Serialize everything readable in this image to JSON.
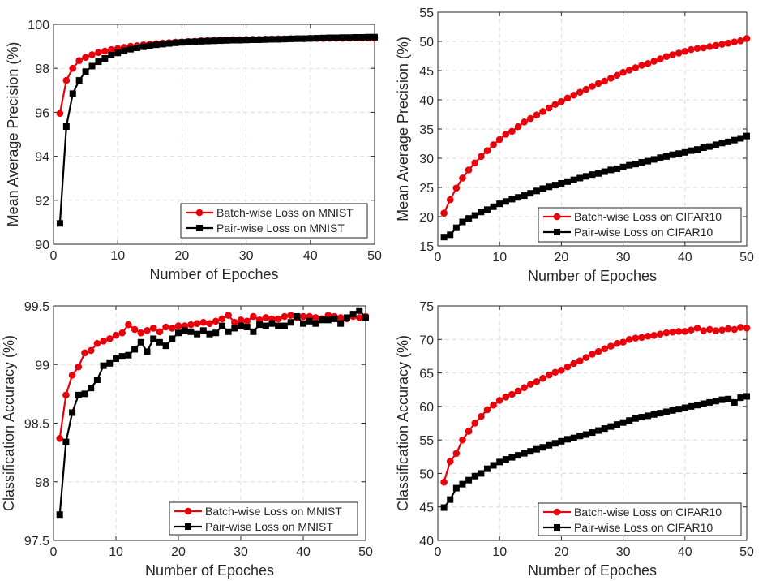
{
  "chart_data": [
    {
      "type": "line",
      "xlabel": "Number of Epoches",
      "ylabel": "Mean Average Precision (%)",
      "xlim": [
        0,
        50
      ],
      "ylim": [
        90,
        100
      ],
      "xticks": [
        "0",
        "10",
        "20",
        "30",
        "40",
        "50"
      ],
      "yticks": [
        "90",
        "92",
        "94",
        "96",
        "98",
        "100"
      ],
      "grid": true,
      "legend_position": "bottom-right",
      "series": [
        {
          "name": "Batch-wise Loss on MNIST",
          "color": "#e8000b",
          "marker": "circle",
          "x": [
            1,
            2,
            3,
            4,
            5,
            6,
            7,
            8,
            9,
            10,
            11,
            12,
            13,
            14,
            15,
            16,
            17,
            18,
            19,
            20,
            21,
            22,
            23,
            24,
            25,
            26,
            27,
            28,
            29,
            30,
            31,
            32,
            33,
            34,
            35,
            36,
            37,
            38,
            39,
            40,
            41,
            42,
            43,
            44,
            45,
            46,
            47,
            48,
            49,
            50
          ],
          "y": [
            95.95,
            97.45,
            98.0,
            98.35,
            98.5,
            98.62,
            98.72,
            98.78,
            98.85,
            98.9,
            98.95,
            99.0,
            99.03,
            99.07,
            99.1,
            99.12,
            99.15,
            99.17,
            99.19,
            99.2,
            99.22,
            99.23,
            99.25,
            99.26,
            99.27,
            99.28,
            99.29,
            99.3,
            99.3,
            99.31,
            99.32,
            99.32,
            99.33,
            99.33,
            99.34,
            99.34,
            99.35,
            99.35,
            99.35,
            99.36,
            99.36,
            99.36,
            99.37,
            99.37,
            99.37,
            99.38,
            99.38,
            99.38,
            99.38,
            99.38
          ]
        },
        {
          "name": "Pair-wise Loss on MNIST",
          "color": "#000000",
          "marker": "square",
          "x": [
            1,
            2,
            3,
            4,
            5,
            6,
            7,
            8,
            9,
            10,
            11,
            12,
            13,
            14,
            15,
            16,
            17,
            18,
            19,
            20,
            21,
            22,
            23,
            24,
            25,
            26,
            27,
            28,
            29,
            30,
            31,
            32,
            33,
            34,
            35,
            36,
            37,
            38,
            39,
            40,
            41,
            42,
            43,
            44,
            45,
            46,
            47,
            48,
            49,
            50
          ],
          "y": [
            90.95,
            95.35,
            96.85,
            97.45,
            97.85,
            98.1,
            98.3,
            98.45,
            98.6,
            98.7,
            98.8,
            98.87,
            98.93,
            98.98,
            99.03,
            99.07,
            99.1,
            99.13,
            99.16,
            99.18,
            99.2,
            99.21,
            99.23,
            99.24,
            99.25,
            99.26,
            99.27,
            99.28,
            99.28,
            99.29,
            99.3,
            99.3,
            99.31,
            99.32,
            99.32,
            99.33,
            99.34,
            99.35,
            99.35,
            99.36,
            99.37,
            99.38,
            99.39,
            99.39,
            99.4,
            99.4,
            99.41,
            99.41,
            99.42,
            99.42
          ]
        }
      ]
    },
    {
      "type": "line",
      "xlabel": "Number of Epoches",
      "ylabel": "Mean Average Precision (%)",
      "xlim": [
        0,
        50
      ],
      "ylim": [
        15,
        55
      ],
      "xticks": [
        "0",
        "10",
        "20",
        "30",
        "40",
        "50"
      ],
      "yticks": [
        "15",
        "20",
        "25",
        "30",
        "35",
        "40",
        "45",
        "50",
        "55"
      ],
      "grid": true,
      "legend_position": "bottom-right",
      "series": [
        {
          "name": "Batch-wise Loss on CIFAR10",
          "color": "#e8000b",
          "marker": "circle",
          "x": [
            1,
            2,
            3,
            4,
            5,
            6,
            7,
            8,
            9,
            10,
            11,
            12,
            13,
            14,
            15,
            16,
            17,
            18,
            19,
            20,
            21,
            22,
            23,
            24,
            25,
            26,
            27,
            28,
            29,
            30,
            31,
            32,
            33,
            34,
            35,
            36,
            37,
            38,
            39,
            40,
            41,
            42,
            43,
            44,
            45,
            46,
            47,
            48,
            49,
            50
          ],
          "y": [
            20.6,
            22.9,
            24.9,
            26.6,
            28.0,
            29.2,
            30.3,
            31.3,
            32.3,
            33.2,
            34.1,
            34.6,
            35.4,
            36.2,
            36.8,
            37.4,
            38.0,
            38.6,
            39.2,
            39.7,
            40.3,
            40.8,
            41.3,
            41.8,
            42.3,
            42.8,
            43.2,
            43.7,
            44.2,
            44.7,
            45.1,
            45.5,
            45.9,
            46.2,
            46.6,
            47.0,
            47.4,
            47.7,
            48.0,
            48.3,
            48.6,
            48.8,
            48.9,
            49.1,
            49.3,
            49.5,
            49.7,
            49.9,
            50.1,
            50.5
          ]
        },
        {
          "name": "Pair-wise Loss on CIFAR10",
          "color": "#000000",
          "marker": "square",
          "x": [
            1,
            2,
            3,
            4,
            5,
            6,
            7,
            8,
            9,
            10,
            11,
            12,
            13,
            14,
            15,
            16,
            17,
            18,
            19,
            20,
            21,
            22,
            23,
            24,
            25,
            26,
            27,
            28,
            29,
            30,
            31,
            32,
            33,
            34,
            35,
            36,
            37,
            38,
            39,
            40,
            41,
            42,
            43,
            44,
            45,
            46,
            47,
            48,
            49,
            50
          ],
          "y": [
            16.5,
            16.9,
            18.1,
            19.1,
            19.7,
            20.2,
            20.8,
            21.2,
            21.7,
            22.2,
            22.6,
            23.0,
            23.3,
            23.6,
            24.0,
            24.4,
            24.8,
            25.1,
            25.4,
            25.7,
            26.0,
            26.3,
            26.6,
            26.9,
            27.2,
            27.4,
            27.7,
            28.0,
            28.2,
            28.5,
            28.8,
            29.0,
            29.3,
            29.5,
            29.8,
            30.1,
            30.3,
            30.6,
            30.8,
            31.0,
            31.3,
            31.5,
            31.8,
            32.0,
            32.3,
            32.6,
            32.8,
            33.1,
            33.4,
            33.8
          ]
        }
      ]
    },
    {
      "type": "line",
      "xlabel": "Number of Epoches",
      "ylabel": "Classification Accuracy (%)",
      "xlim": [
        0,
        50
      ],
      "ylim": [
        97.5,
        99.5
      ],
      "xticks": [
        "0",
        "10",
        "20",
        "30",
        "40",
        "50"
      ],
      "yticks": [
        "97.5",
        "98",
        "98.5",
        "99",
        "99.5"
      ],
      "grid": true,
      "legend_position": "bottom-right",
      "series": [
        {
          "name": "Batch-wise Loss on MNIST",
          "color": "#e8000b",
          "marker": "circle",
          "x": [
            1,
            2,
            3,
            4,
            5,
            6,
            7,
            8,
            9,
            10,
            11,
            12,
            13,
            14,
            15,
            16,
            17,
            18,
            19,
            20,
            21,
            22,
            23,
            24,
            25,
            26,
            27,
            28,
            29,
            30,
            31,
            32,
            33,
            34,
            35,
            36,
            37,
            38,
            39,
            40,
            41,
            42,
            43,
            44,
            45,
            46,
            47,
            48,
            49,
            50
          ],
          "y": [
            98.37,
            98.74,
            98.91,
            98.98,
            99.1,
            99.12,
            99.18,
            99.2,
            99.22,
            99.25,
            99.27,
            99.34,
            99.3,
            99.27,
            99.29,
            99.31,
            99.28,
            99.32,
            99.31,
            99.33,
            99.33,
            99.34,
            99.35,
            99.36,
            99.35,
            99.37,
            99.39,
            99.42,
            99.36,
            99.38,
            99.37,
            99.41,
            99.38,
            99.4,
            99.39,
            99.39,
            99.41,
            99.42,
            99.4,
            99.41,
            99.41,
            99.4,
            99.39,
            99.42,
            99.41,
            99.4,
            99.39,
            99.41,
            99.4,
            99.41
          ]
        },
        {
          "name": "Pair-wise Loss on MNIST",
          "color": "#000000",
          "marker": "square",
          "x": [
            1,
            2,
            3,
            4,
            5,
            6,
            7,
            8,
            9,
            10,
            11,
            12,
            13,
            14,
            15,
            16,
            17,
            18,
            19,
            20,
            21,
            22,
            23,
            24,
            25,
            26,
            27,
            28,
            29,
            30,
            31,
            32,
            33,
            34,
            35,
            36,
            37,
            38,
            39,
            40,
            41,
            42,
            43,
            44,
            45,
            46,
            47,
            48,
            49,
            50
          ],
          "y": [
            97.72,
            98.34,
            98.59,
            98.74,
            98.75,
            98.8,
            98.87,
            98.99,
            99.01,
            99.05,
            99.07,
            99.08,
            99.13,
            99.19,
            99.11,
            99.22,
            99.19,
            99.16,
            99.22,
            99.27,
            99.29,
            99.28,
            99.26,
            99.29,
            99.26,
            99.27,
            99.33,
            99.28,
            99.31,
            99.33,
            99.32,
            99.28,
            99.34,
            99.33,
            99.35,
            99.33,
            99.33,
            99.36,
            99.41,
            99.35,
            99.37,
            99.35,
            99.38,
            99.38,
            99.39,
            99.35,
            99.4,
            99.43,
            99.46,
            99.4
          ]
        }
      ]
    },
    {
      "type": "line",
      "xlabel": "Number of Epoches",
      "ylabel": "Classification Accuracy (%)",
      "xlim": [
        0,
        50
      ],
      "ylim": [
        40,
        75
      ],
      "xticks": [
        "0",
        "10",
        "20",
        "30",
        "40",
        "50"
      ],
      "yticks": [
        "40",
        "45",
        "50",
        "55",
        "60",
        "65",
        "70",
        "75"
      ],
      "grid": true,
      "legend_position": "bottom-right",
      "series": [
        {
          "name": "Batch-wise Loss on CIFAR10",
          "color": "#e8000b",
          "marker": "circle",
          "x": [
            1,
            2,
            3,
            4,
            5,
            6,
            7,
            8,
            9,
            10,
            11,
            12,
            13,
            14,
            15,
            16,
            17,
            18,
            19,
            20,
            21,
            22,
            23,
            24,
            25,
            26,
            27,
            28,
            29,
            30,
            31,
            32,
            33,
            34,
            35,
            36,
            37,
            38,
            39,
            40,
            41,
            42,
            43,
            44,
            45,
            46,
            47,
            48,
            49,
            50
          ],
          "y": [
            48.7,
            51.8,
            53.0,
            55.0,
            56.3,
            57.5,
            58.5,
            59.5,
            60.2,
            60.9,
            61.4,
            61.8,
            62.3,
            62.8,
            63.3,
            63.7,
            64.2,
            64.7,
            65.1,
            65.4,
            65.9,
            66.4,
            66.8,
            67.3,
            67.8,
            68.2,
            68.6,
            69.0,
            69.4,
            69.6,
            70.0,
            70.2,
            70.3,
            70.5,
            70.6,
            70.8,
            71.0,
            71.1,
            71.2,
            71.2,
            71.4,
            71.7,
            71.3,
            71.5,
            71.3,
            71.4,
            71.6,
            71.5,
            71.8,
            71.7
          ]
        },
        {
          "name": "Pair-wise Loss on CIFAR10",
          "color": "#000000",
          "marker": "square",
          "x": [
            1,
            2,
            3,
            4,
            5,
            6,
            7,
            8,
            9,
            10,
            11,
            12,
            13,
            14,
            15,
            16,
            17,
            18,
            19,
            20,
            21,
            22,
            23,
            24,
            25,
            26,
            27,
            28,
            29,
            30,
            31,
            32,
            33,
            34,
            35,
            36,
            37,
            38,
            39,
            40,
            41,
            42,
            43,
            44,
            45,
            46,
            47,
            48,
            49,
            50
          ],
          "y": [
            44.9,
            46.1,
            47.8,
            48.4,
            49.0,
            49.6,
            50.0,
            50.7,
            51.2,
            51.7,
            52.1,
            52.4,
            52.7,
            53.0,
            53.3,
            53.6,
            53.9,
            54.2,
            54.5,
            54.8,
            55.1,
            55.3,
            55.6,
            55.8,
            56.1,
            56.4,
            56.7,
            57.0,
            57.3,
            57.6,
            57.9,
            58.2,
            58.4,
            58.6,
            58.8,
            59.0,
            59.2,
            59.4,
            59.6,
            59.8,
            60.0,
            60.2,
            60.4,
            60.6,
            60.8,
            61.0,
            61.1,
            60.6,
            61.3,
            61.5
          ]
        }
      ]
    }
  ]
}
